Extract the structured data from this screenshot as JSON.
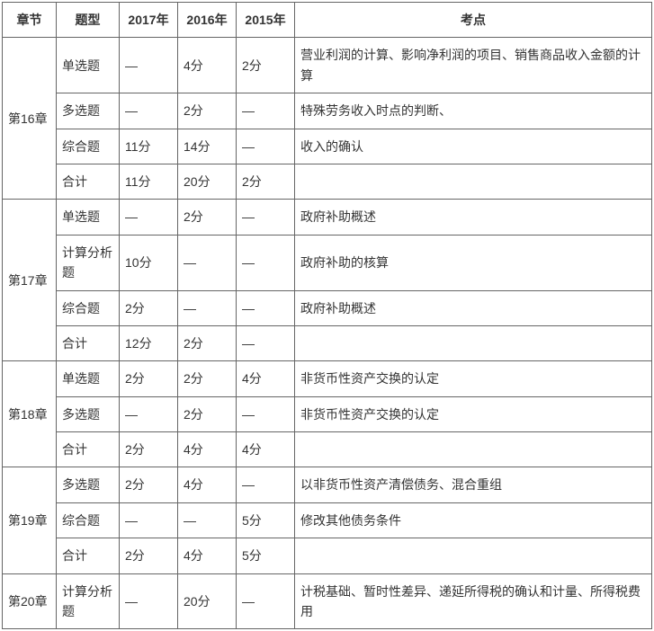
{
  "headers": {
    "chapter": "章节",
    "type": "题型",
    "y2017": "2017年",
    "y2016": "2016年",
    "y2015": "2015年",
    "point": "考点"
  },
  "rows": [
    {
      "chapter": "第16章",
      "type": "单选题",
      "y2017": "—",
      "y2016": "4分",
      "y2015": "2分",
      "point": "营业利润的计算、影响净利润的项目、销售商品收入金额的计算",
      "rowspan": 4
    },
    {
      "type": "多选题",
      "y2017": "—",
      "y2016": "2分",
      "y2015": "—",
      "point": "特殊劳务收入时点的判断、"
    },
    {
      "type": "综合题",
      "y2017": "11分",
      "y2016": "14分",
      "y2015": "—",
      "point": "收入的确认"
    },
    {
      "type": "合计",
      "y2017": "11分",
      "y2016": "20分",
      "y2015": "2分",
      "point": ""
    },
    {
      "chapter": "第17章",
      "type": "单选题",
      "y2017": "—",
      "y2016": "2分",
      "y2015": "—",
      "point": "政府补助概述",
      "rowspan": 4
    },
    {
      "type": "计算分析题",
      "y2017": "10分",
      "y2016": "—",
      "y2015": "—",
      "point": "政府补助的核算"
    },
    {
      "type": "综合题",
      "y2017": "2分",
      "y2016": "—",
      "y2015": "—",
      "point": "政府补助概述"
    },
    {
      "type": "合计",
      "y2017": "12分",
      "y2016": "2分",
      "y2015": "—",
      "point": ""
    },
    {
      "chapter": "第18章",
      "type": "单选题",
      "y2017": "2分",
      "y2016": "2分",
      "y2015": "4分",
      "point": "非货币性资产交换的认定",
      "rowspan": 3
    },
    {
      "type": "多选题",
      "y2017": "—",
      "y2016": "2分",
      "y2015": "—",
      "point": "非货币性资产交换的认定"
    },
    {
      "type": "合计",
      "y2017": "2分",
      "y2016": "4分",
      "y2015": "4分",
      "point": ""
    },
    {
      "chapter": "第19章",
      "type": "多选题",
      "y2017": "2分",
      "y2016": "4分",
      "y2015": "—",
      "point": "以非货币性资产清偿债务、混合重组",
      "rowspan": 3
    },
    {
      "type": "综合题",
      "y2017": "—",
      "y2016": "—",
      "y2015": "5分",
      "point": "修改其他债务条件"
    },
    {
      "type": "合计",
      "y2017": "2分",
      "y2016": "4分",
      "y2015": "5分",
      "point": ""
    },
    {
      "chapter": "第20章",
      "type": "计算分析题",
      "y2017": "—",
      "y2016": "20分",
      "y2015": "—",
      "point": "计税基础、暂时性差异、递延所得税的确认和计量、所得税费用",
      "rowspan": 1
    }
  ]
}
